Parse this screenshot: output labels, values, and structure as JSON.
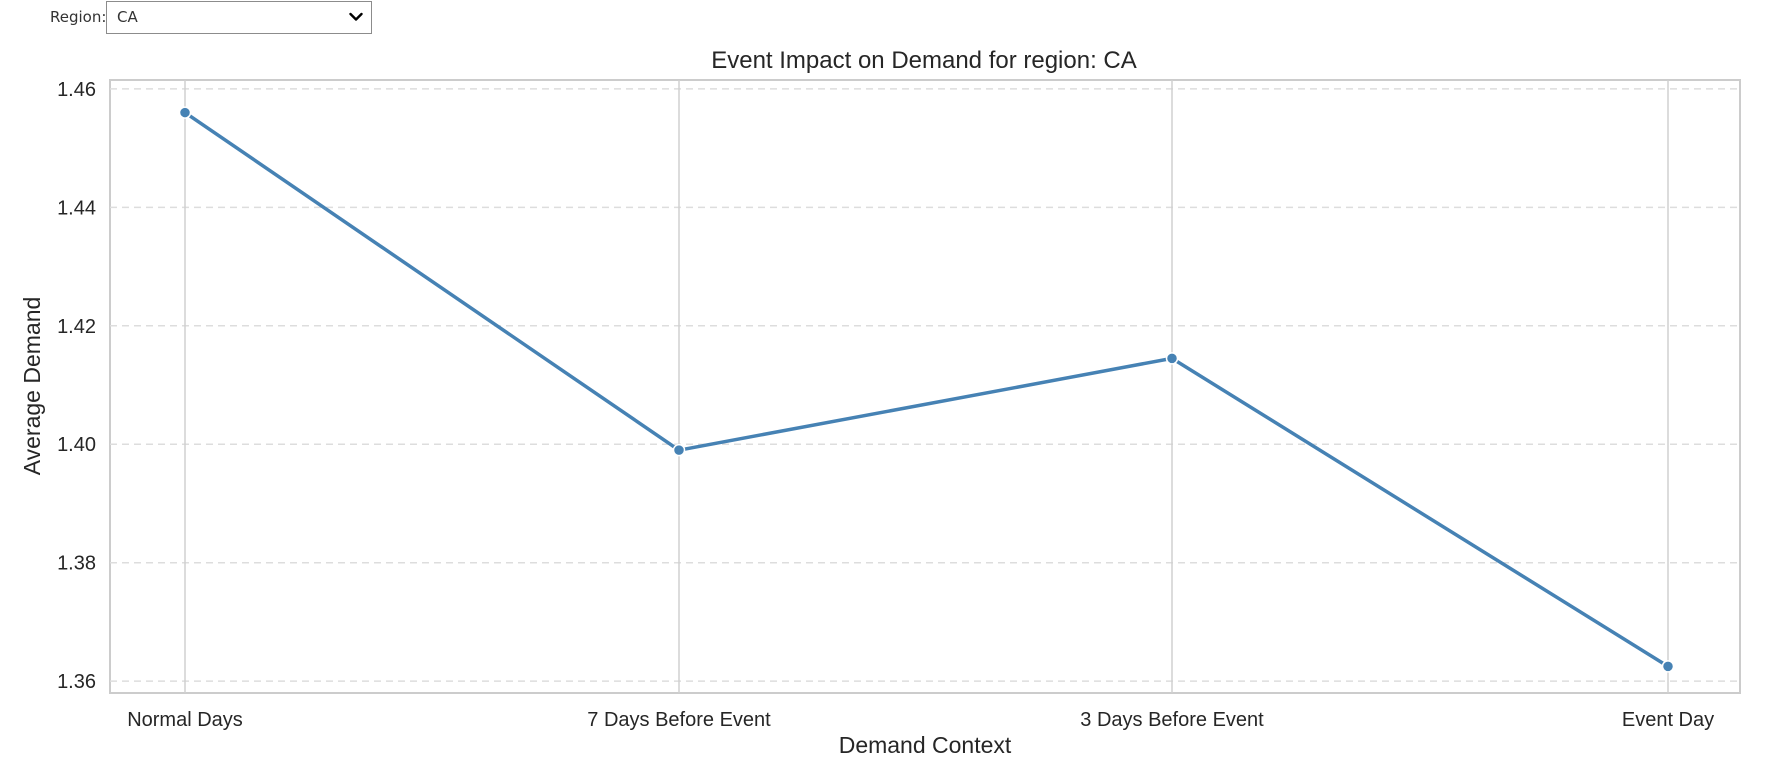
{
  "widget": {
    "label": "Region:",
    "selected": "CA",
    "chevron_icon": "chevron-down-icon"
  },
  "chart_data": {
    "type": "line",
    "title": "Event Impact on Demand for region: CA",
    "xlabel": "Demand Context",
    "ylabel": "Average Demand",
    "categories": [
      "Normal Days",
      "7 Days Before Event",
      "3 Days Before Event",
      "Event Day"
    ],
    "values": [
      1.456,
      1.399,
      1.4145,
      1.3625
    ],
    "yticks": [
      "1.36",
      "1.38",
      "1.40",
      "1.42",
      "1.44",
      "1.46"
    ],
    "ylim": [
      1.358,
      1.4615
    ],
    "grid": true,
    "line_color": "#4682b4"
  }
}
